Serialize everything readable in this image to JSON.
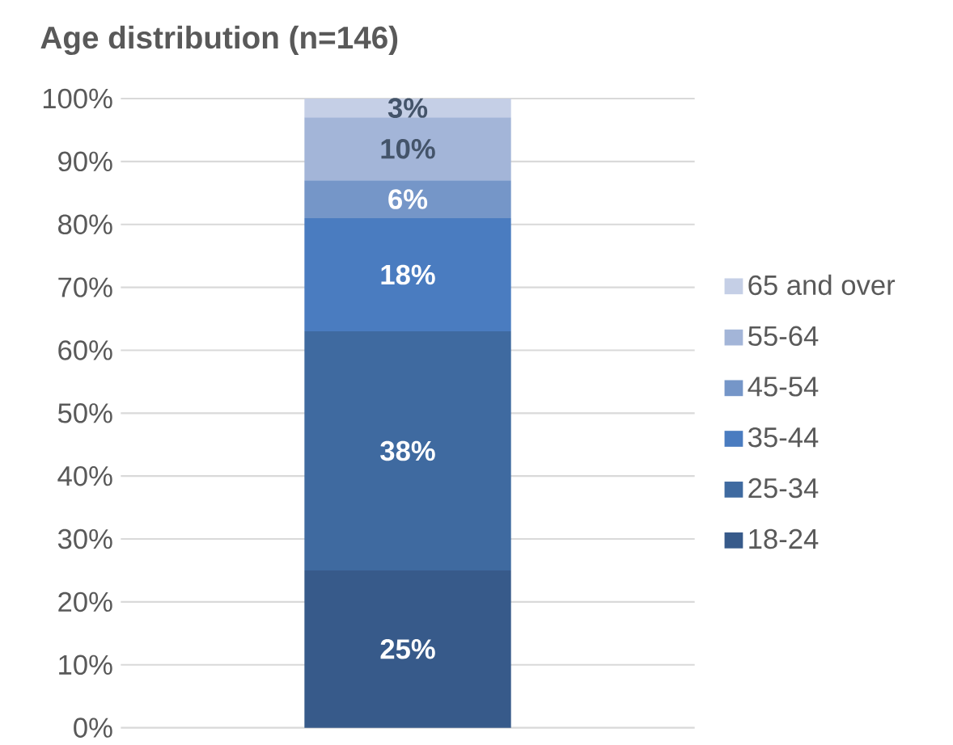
{
  "chart_data": {
    "type": "bar",
    "title": "Age distribution (n=146)",
    "stacked": true,
    "categories": [
      null
    ],
    "series": [
      {
        "name": "18-24",
        "color": "#375a8a",
        "values": [
          25
        ],
        "value_labels": [
          "25%"
        ]
      },
      {
        "name": "25-34",
        "color": "#3f6aa0",
        "values": [
          38
        ],
        "value_labels": [
          "38%"
        ]
      },
      {
        "name": "35-44",
        "color": "#4a7cc0",
        "values": [
          18
        ],
        "value_labels": [
          "18%"
        ]
      },
      {
        "name": "45-54",
        "color": "#7596c8",
        "values": [
          6
        ],
        "value_labels": [
          "6%"
        ]
      },
      {
        "name": "55-64",
        "color": "#a3b5d8",
        "values": [
          10
        ],
        "value_labels": [
          "10%"
        ]
      },
      {
        "name": "65 and over",
        "color": "#c5cfe6",
        "values": [
          3
        ],
        "value_labels": [
          "3%"
        ]
      }
    ],
    "ylim": [
      0,
      100
    ],
    "yticks": [
      {
        "value": 0,
        "label": "0%"
      },
      {
        "value": 10,
        "label": "10%"
      },
      {
        "value": 20,
        "label": "20%"
      },
      {
        "value": 30,
        "label": "30%"
      },
      {
        "value": 40,
        "label": "40%"
      },
      {
        "value": 50,
        "label": "50%"
      },
      {
        "value": 60,
        "label": "60%"
      },
      {
        "value": 70,
        "label": "70%"
      },
      {
        "value": 80,
        "label": "80%"
      },
      {
        "value": 90,
        "label": "90%"
      },
      {
        "value": 100,
        "label": "100%"
      }
    ],
    "grid": "y",
    "legend": "right"
  }
}
